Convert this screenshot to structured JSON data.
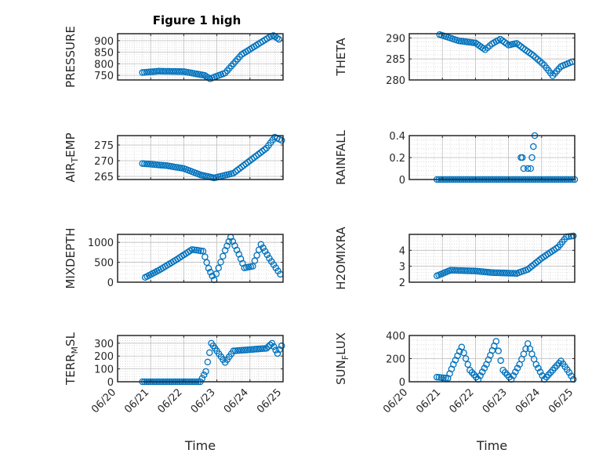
{
  "figure_title": "Figure 1 high",
  "xlabel": "Time",
  "date_ticks": [
    "06/20",
    "06/21",
    "06/22",
    "06/23",
    "06/24",
    "06/25"
  ],
  "marker_color": "#0072BD",
  "chart_data": [
    {
      "type": "scatter",
      "ylabel": "PRESSURE",
      "grid": "on",
      "has_xtick_labels": false,
      "yticks": [
        750,
        800,
        850,
        900
      ],
      "ylim": [
        730,
        930
      ],
      "xlim": [
        "06/20 00:00",
        "06/25 00:00"
      ],
      "keypoints": [
        [
          "06/20 18:00",
          762
        ],
        [
          "06/21 06:00",
          768
        ],
        [
          "06/22 00:00",
          766
        ],
        [
          "06/22 15:00",
          750
        ],
        [
          "06/22 19:00",
          735
        ],
        [
          "06/23 06:00",
          760
        ],
        [
          "06/23 18:00",
          840
        ],
        [
          "06/24 06:00",
          885
        ],
        [
          "06/24 14:00",
          915
        ],
        [
          "06/24 17:00",
          922
        ],
        [
          "06/24 21:00",
          906
        ]
      ]
    },
    {
      "type": "scatter",
      "ylabel": "THETA",
      "grid": "on",
      "has_xtick_labels": false,
      "yticks": [
        280,
        285,
        290
      ],
      "ylim": [
        280,
        291
      ],
      "xlim": [
        "06/20 00:00",
        "06/25 00:00"
      ],
      "keypoints": [
        [
          "06/20 22:00",
          290.8
        ],
        [
          "06/21 12:00",
          289.3
        ],
        [
          "06/22 00:00",
          288.8
        ],
        [
          "06/22 07:00",
          287.2
        ],
        [
          "06/22 12:00",
          288.6
        ],
        [
          "06/22 18:00",
          289.7
        ],
        [
          "06/23 00:00",
          288.3
        ],
        [
          "06/23 06:00",
          288.7
        ],
        [
          "06/23 12:00",
          287.2
        ],
        [
          "06/23 18:00",
          285.8
        ],
        [
          "06/24 02:00",
          283.5
        ],
        [
          "06/24 08:00",
          281.0
        ],
        [
          "06/24 14:00",
          283.2
        ],
        [
          "06/24 22:00",
          284.3
        ]
      ]
    },
    {
      "type": "scatter",
      "ylabel": "AIR_TEMP",
      "grid": "on",
      "has_xtick_labels": false,
      "yticks": [
        265,
        270,
        275
      ],
      "ylim": [
        264,
        278
      ],
      "xlim": [
        "06/20 00:00",
        "06/25 00:00"
      ],
      "keypoints": [
        [
          "06/20 18:00",
          269.1
        ],
        [
          "06/21 12:00",
          268.4
        ],
        [
          "06/22 00:00",
          267.5
        ],
        [
          "06/22 12:00",
          265.5
        ],
        [
          "06/22 22:00",
          264.5
        ],
        [
          "06/23 12:00",
          266.0
        ],
        [
          "06/24 00:00",
          270.0
        ],
        [
          "06/24 12:00",
          274.0
        ],
        [
          "06/24 18:00",
          277.5
        ],
        [
          "06/24 23:00",
          276.5
        ]
      ]
    },
    {
      "type": "scatter",
      "ylabel": "RAINFALL",
      "grid": "on",
      "has_xtick_labels": false,
      "yticks": [
        0,
        0.2,
        0.4
      ],
      "ylim": [
        0,
        0.4
      ],
      "xlim": [
        "06/20 00:00",
        "06/25 00:00"
      ],
      "keypoints": [
        [
          "06/20 20:00",
          0
        ],
        [
          "06/24 23:59",
          0
        ]
      ],
      "extra_points": [
        [
          "06/23 09:00",
          0.2
        ],
        [
          "06/23 10:00",
          0.2
        ],
        [
          "06/23 11:00",
          0.1
        ],
        [
          "06/23 14:00",
          0.1
        ],
        [
          "06/23 16:00",
          0.1
        ],
        [
          "06/23 17:00",
          0.2
        ],
        [
          "06/23 18:00",
          0.3
        ],
        [
          "06/23 19:00",
          0.4
        ]
      ]
    },
    {
      "type": "scatter",
      "ylabel": "MIXDEPTH",
      "grid": "on",
      "has_xtick_labels": false,
      "yticks": [
        0,
        500,
        1000
      ],
      "ylim": [
        0,
        1200
      ],
      "xlim": [
        "06/20 00:00",
        "06/25 00:00"
      ],
      "keypoints": [
        [
          "06/20 20:00",
          120
        ],
        [
          "06/21 06:00",
          300
        ],
        [
          "06/21 18:00",
          550
        ],
        [
          "06/22 06:00",
          820
        ],
        [
          "06/22 14:00",
          780
        ],
        [
          "06/22 18:00",
          350
        ],
        [
          "06/22 22:00",
          60
        ],
        [
          "06/23 06:00",
          800
        ],
        [
          "06/23 10:00",
          1130
        ],
        [
          "06/23 16:00",
          700
        ],
        [
          "06/23 20:00",
          360
        ],
        [
          "06/24 02:00",
          400
        ],
        [
          "06/24 08:00",
          950
        ],
        [
          "06/24 14:00",
          600
        ],
        [
          "06/24 22:00",
          200
        ]
      ]
    },
    {
      "type": "scatter",
      "ylabel": "H2OMIXRA",
      "grid": "on",
      "has_xtick_labels": false,
      "yticks": [
        2,
        3,
        4
      ],
      "ylim": [
        2,
        5
      ],
      "xlim": [
        "06/20 00:00",
        "06/25 00:00"
      ],
      "keypoints": [
        [
          "06/20 20:00",
          2.4
        ],
        [
          "06/21 06:00",
          2.75
        ],
        [
          "06/22 00:00",
          2.7
        ],
        [
          "06/22 12:00",
          2.6
        ],
        [
          "06/23 06:00",
          2.55
        ],
        [
          "06/23 14:00",
          2.8
        ],
        [
          "06/24 00:00",
          3.5
        ],
        [
          "06/24 12:00",
          4.2
        ],
        [
          "06/24 18:00",
          4.85
        ],
        [
          "06/24 23:00",
          4.9
        ]
      ]
    },
    {
      "type": "scatter",
      "ylabel": "TERR_MSL",
      "grid": "on",
      "has_xtick_labels": true,
      "yticks": [
        0,
        100,
        200,
        300
      ],
      "ylim": [
        0,
        360
      ],
      "xlim": [
        "06/20 00:00",
        "06/25 00:00"
      ],
      "keypoints": [
        [
          "06/20 18:00",
          0
        ],
        [
          "06/22 12:00",
          0
        ],
        [
          "06/22 16:00",
          80
        ],
        [
          "06/22 20:00",
          300
        ],
        [
          "06/23 00:00",
          240
        ],
        [
          "06/23 06:00",
          150
        ],
        [
          "06/23 12:00",
          240
        ],
        [
          "06/24 00:00",
          250
        ],
        [
          "06/24 12:00",
          260
        ],
        [
          "06/24 16:00",
          300
        ],
        [
          "06/24 20:00",
          220
        ],
        [
          "06/24 23:00",
          280
        ]
      ]
    },
    {
      "type": "scatter",
      "ylabel": "SUN_FLUX",
      "grid": "on",
      "has_xtick_labels": true,
      "yticks": [
        0,
        200,
        400
      ],
      "ylim": [
        0,
        400
      ],
      "xlim": [
        "06/20 00:00",
        "06/25 00:00"
      ],
      "keypoints": [
        [
          "06/20 20:00",
          40
        ],
        [
          "06/21 04:00",
          30
        ],
        [
          "06/21 08:00",
          150
        ],
        [
          "06/21 14:00",
          300
        ],
        [
          "06/21 20:00",
          100
        ],
        [
          "06/22 02:00",
          20
        ],
        [
          "06/22 08:00",
          150
        ],
        [
          "06/22 15:00",
          350
        ],
        [
          "06/22 20:00",
          100
        ],
        [
          "06/23 02:00",
          20
        ],
        [
          "06/23 08:00",
          150
        ],
        [
          "06/23 14:00",
          330
        ],
        [
          "06/23 20:00",
          150
        ],
        [
          "06/24 02:00",
          20
        ],
        [
          "06/24 08:00",
          100
        ],
        [
          "06/24 14:00",
          180
        ],
        [
          "06/24 20:00",
          80
        ],
        [
          "06/24 23:00",
          20
        ]
      ]
    }
  ]
}
